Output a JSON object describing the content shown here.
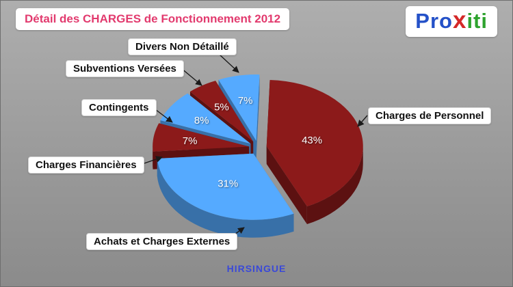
{
  "header": {
    "title": "Détail des CHARGES de Fonctionnement 2012",
    "logo": {
      "part_pro": "Pro",
      "part_x": "x",
      "part_iti": "iti"
    }
  },
  "footer": {
    "commune": "HIRSINGUE"
  },
  "colors": {
    "title": "#e23a6e",
    "footer": "#3a49d8",
    "logo_pro": "#2451c8",
    "logo_x": "#d42828",
    "logo_iti": "#2ea32e",
    "slice_dark_red": "#8c1a1a",
    "slice_light_blue": "#55aaff"
  },
  "chart_data": {
    "type": "pie",
    "style": "3d-exploded",
    "title": "Détail des CHARGES de Fonctionnement 2012",
    "unit": "%",
    "direction": "clockwise",
    "start_angle_deg": -113,
    "legend_position": "callouts",
    "slices": [
      {
        "label": "Divers Non Détaillé",
        "value": 7,
        "color": "#55aaff"
      },
      {
        "label": "Charges de Personnel",
        "value": 43,
        "color": "#8c1a1a"
      },
      {
        "label": "Achats et Charges Externes",
        "value": 31,
        "color": "#55aaff"
      },
      {
        "label": "Charges Financières",
        "value": 7,
        "color": "#8c1a1a"
      },
      {
        "label": "Contingents",
        "value": 8,
        "color": "#55aaff"
      },
      {
        "label": "Subventions Versées",
        "value": 5,
        "color": "#8c1a1a"
      }
    ]
  }
}
